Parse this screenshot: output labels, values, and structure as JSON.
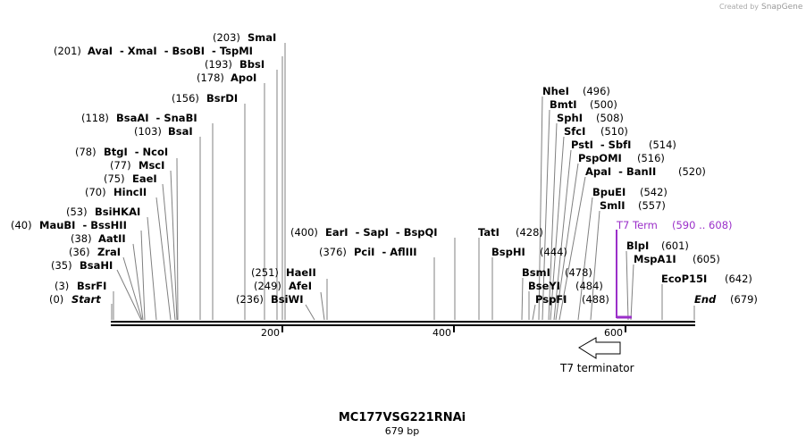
{
  "credit": {
    "text": "Created by",
    "brand": "SnapGene"
  },
  "title": "MC177VSG221RNAi",
  "subtitle": "679 bp",
  "colors": {
    "feature": "#9b2fc9",
    "line": "#000000"
  },
  "sites": [
    {
      "pos": "(0)",
      "name": "Start",
      "italic": true
    },
    {
      "pos": "(3)",
      "name": "BsrFI"
    },
    {
      "pos": "(35)",
      "name": "BsaHI"
    },
    {
      "pos": "(36)",
      "name": "ZraI"
    },
    {
      "pos": "(38)",
      "name": "AatII"
    },
    {
      "pos": "(40)",
      "name": "MauBI  - BssHII"
    },
    {
      "pos": "(53)",
      "name": "BsiHKAI"
    },
    {
      "pos": "(70)",
      "name": "HincII"
    },
    {
      "pos": "(75)",
      "name": "EaeI"
    },
    {
      "pos": "(77)",
      "name": "MscI"
    },
    {
      "pos": "(78)",
      "name": "BtgI  - NcoI"
    },
    {
      "pos": "(103)",
      "name": "BsaI"
    },
    {
      "pos": "(118)",
      "name": "BsaAI  - SnaBI"
    },
    {
      "pos": "(156)",
      "name": "BsrDI"
    },
    {
      "pos": "(178)",
      "name": "ApoI"
    },
    {
      "pos": "(193)",
      "name": "BbsI"
    },
    {
      "pos": "(201)",
      "name": "AvaI  - XmaI  - BsoBI  - TspMI"
    },
    {
      "pos": "(203)",
      "name": "SmaI"
    },
    {
      "pos": "(236)",
      "name": "BsiWI"
    },
    {
      "pos": "(249)",
      "name": "AfeI"
    },
    {
      "pos": "(251)",
      "name": "HaeII"
    },
    {
      "pos": "(376)",
      "name": "PciI  - AflIII"
    },
    {
      "pos": "(400)",
      "name": "EarI  - SapI  - BspQI"
    },
    {
      "pos": "(428)",
      "name": "TatI"
    },
    {
      "pos": "(444)",
      "name": "BspHI"
    },
    {
      "pos": "(478)",
      "name": "BsmI"
    },
    {
      "pos": "(484)",
      "name": "BseYI"
    },
    {
      "pos": "(488)",
      "name": "PspFI"
    },
    {
      "pos": "(496)",
      "name": "NheI"
    },
    {
      "pos": "(500)",
      "name": "BmtI"
    },
    {
      "pos": "(508)",
      "name": "SphI"
    },
    {
      "pos": "(510)",
      "name": "SfcI"
    },
    {
      "pos": "(514)",
      "name": "PstI  - SbfI"
    },
    {
      "pos": "(516)",
      "name": "PspOMI"
    },
    {
      "pos": "(520)",
      "name": "ApaI  - BanII"
    },
    {
      "pos": "(542)",
      "name": "BpuEI"
    },
    {
      "pos": "(557)",
      "name": "SmlI"
    },
    {
      "pos": "(601)",
      "name": "BlpI"
    },
    {
      "pos": "(605)",
      "name": "MspA1I"
    },
    {
      "pos": "(642)",
      "name": "EcoP15I"
    },
    {
      "pos": "(679)",
      "name": "End",
      "italic": true
    }
  ],
  "feature": {
    "name": "T7 Term",
    "range": "(590 .. 608)"
  },
  "arrow_label": "T7 terminator",
  "ruler": {
    "ticks": [
      "200",
      "400",
      "600"
    ]
  }
}
